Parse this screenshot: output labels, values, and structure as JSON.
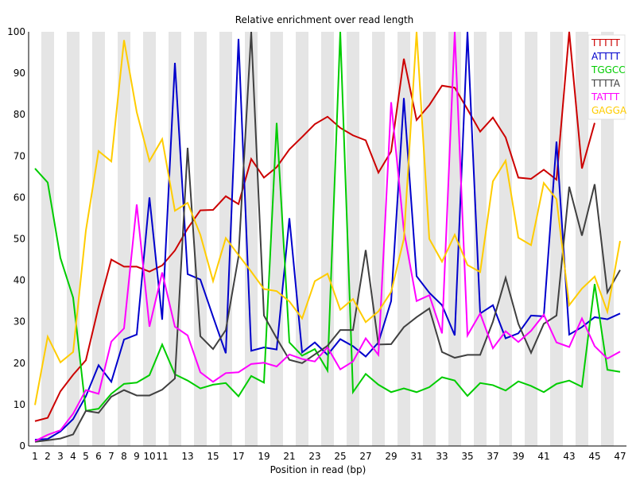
{
  "chart_data": {
    "type": "line",
    "title": "Relative enrichment over read length",
    "xlabel": "Position in read (bp)",
    "ylabel": "",
    "x": [
      1,
      2,
      3,
      4,
      5,
      6,
      7,
      8,
      9,
      10,
      11,
      12,
      13,
      14,
      15,
      16,
      17,
      18,
      19,
      20,
      21,
      22,
      23,
      24,
      25,
      26,
      27,
      28,
      29,
      30,
      31,
      32,
      33,
      34,
      35,
      36,
      37,
      38,
      39,
      40,
      41,
      42,
      43,
      44,
      45,
      46,
      47
    ],
    "x_tick_labels": [
      "1",
      "3",
      "5",
      "7",
      "9",
      "11",
      "13",
      "15",
      "17",
      "19",
      "21",
      "23",
      "25",
      "27",
      "29",
      "31",
      "33",
      "35",
      "37",
      "39",
      "41",
      "43",
      "45",
      "47"
    ],
    "x_tick_labels_extra": [
      "2",
      "4",
      "6",
      "8",
      "10"
    ],
    "ylim": [
      0,
      100
    ],
    "y_ticks": [
      0,
      10,
      20,
      30,
      40,
      50,
      60,
      70,
      80,
      90,
      100
    ],
    "grid": "alternating vertical bands",
    "legend_position": "top-right",
    "series": [
      {
        "name": "TTTTT",
        "color": "#cc0000",
        "values": [
          6,
          6.8,
          13.2,
          17.2,
          20.7,
          33.6,
          45,
          43.3,
          43.3,
          42.1,
          43.6,
          47.2,
          52.5,
          56.9,
          57,
          60.3,
          58.4,
          69.3,
          64.8,
          67.3,
          71.6,
          74.6,
          77.7,
          79.5,
          76.8,
          75,
          73.8,
          66,
          71.1,
          93.5,
          78.7,
          82.3,
          87,
          86.5,
          81.3,
          75.9,
          79.3,
          74.5,
          64.8,
          64.5,
          66.7,
          64.3,
          100,
          67,
          78,
          null,
          null
        ]
      },
      {
        "name": "ATTTT",
        "color": "#0000cc",
        "values": [
          1.5,
          1.7,
          3.5,
          6.5,
          12,
          19.5,
          15.5,
          25.7,
          26.9,
          60,
          30.5,
          92.5,
          41.5,
          40.2,
          31.2,
          22.4,
          98.3,
          23,
          23.8,
          23.3,
          55,
          22.6,
          25,
          22,
          25.8,
          24.1,
          21.6,
          25,
          35,
          84,
          41,
          37,
          34,
          26.7,
          100,
          32,
          34,
          26,
          27.2,
          31.5,
          31.3,
          73.5,
          26.9,
          28.7,
          31.1,
          30.6,
          32
        ]
      },
      {
        "name": "TGGCC",
        "color": "#00cc00",
        "values": [
          67,
          63.6,
          45.4,
          35.8,
          8.5,
          9,
          12.6,
          15,
          15.3,
          17.1,
          24.5,
          17.3,
          15.8,
          13.9,
          14.8,
          15.2,
          12,
          16.9,
          15.3,
          78,
          25,
          21.8,
          23.4,
          18.2,
          100,
          13,
          17.4,
          14.8,
          13,
          13.9,
          13,
          14.2,
          16.6,
          15.8,
          12.1,
          15.2,
          14.7,
          13.4,
          15.6,
          14.5,
          13,
          15,
          15.8,
          14.3,
          39.1,
          18.4,
          17.9
        ]
      },
      {
        "name": "TTTTA",
        "color": "#404040",
        "values": [
          1,
          1.4,
          1.8,
          2.8,
          8.5,
          8,
          11.9,
          13.5,
          12.2,
          12.2,
          13.6,
          16.3,
          72,
          26.5,
          23.4,
          28,
          45.7,
          100,
          31.5,
          26,
          20.8,
          20,
          22.1,
          24.2,
          28,
          28,
          47.3,
          24.5,
          24.6,
          28.7,
          31.1,
          33.2,
          22.7,
          21.3,
          22,
          22,
          30,
          40.6,
          29.5,
          22.5,
          29.5,
          31.5,
          62.6,
          50.8,
          63.2,
          37.1,
          42.5
        ]
      },
      {
        "name": "TATTT",
        "color": "#ff00ff",
        "values": [
          1.2,
          2.7,
          3.8,
          7.8,
          13.5,
          12.6,
          25.2,
          28.4,
          58.3,
          28.8,
          41.9,
          28.8,
          26.7,
          17.8,
          15.5,
          17.6,
          17.8,
          19.8,
          20.1,
          19.2,
          22.1,
          21,
          20.4,
          23.8,
          18.5,
          20.4,
          26,
          22,
          83,
          52,
          35,
          36.4,
          27.2,
          100,
          26.7,
          32,
          23.6,
          27.7,
          25.1,
          27.8,
          31.7,
          25,
          23.9,
          30.8,
          24.1,
          21.1,
          22.8
        ]
      },
      {
        "name": "GAGGA",
        "color": "#ffcc00",
        "values": [
          9.9,
          26.4,
          20.2,
          22.7,
          52,
          71.2,
          68.7,
          98,
          80.6,
          68.8,
          74.1,
          56.8,
          58.7,
          51,
          39.8,
          50.2,
          46.1,
          42.1,
          37.9,
          37.4,
          34.9,
          30.8,
          39.8,
          41.6,
          32.9,
          35.5,
          29.9,
          32.5,
          37.2,
          50,
          100,
          50,
          44.5,
          51,
          43.7,
          42,
          63.9,
          68.9,
          50.3,
          48.5,
          63.5,
          59.6,
          34,
          38,
          40.9,
          32.4,
          49.5
        ]
      }
    ]
  }
}
